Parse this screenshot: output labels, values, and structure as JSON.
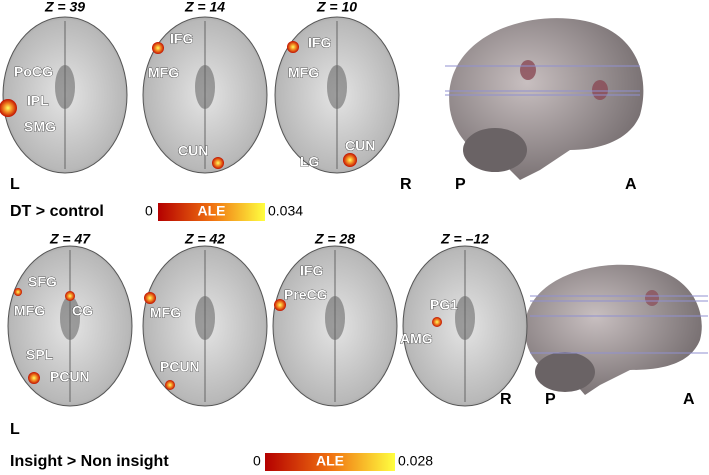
{
  "panels": [
    {
      "slices": [
        {
          "z_label": "Z = 39",
          "labels": [
            "PoCG",
            "IPL",
            "SMG"
          ]
        },
        {
          "z_label": "Z = 14",
          "labels": [
            "IFG",
            "MFG",
            "CUN"
          ]
        },
        {
          "z_label": "Z = 10",
          "labels": [
            "IFG",
            "MFG",
            "CUN",
            "LG"
          ]
        }
      ],
      "left": "L",
      "right": "R",
      "posterior": "P",
      "anterior": "A",
      "contrast": "DT > control",
      "colorbar": {
        "min": 0,
        "label": "ALE",
        "max": 0.034
      }
    },
    {
      "slices": [
        {
          "z_label": "Z = 47",
          "labels": [
            "SFG",
            "MFG",
            "CG",
            "SPL",
            "PCUN"
          ]
        },
        {
          "z_label": "Z = 42",
          "labels": [
            "MFG",
            "PCUN"
          ]
        },
        {
          "z_label": "Z = 28",
          "labels": [
            "IFG",
            "PreCG"
          ]
        },
        {
          "z_label": "Z = –12",
          "labels": [
            "PG1",
            "AMG"
          ]
        }
      ],
      "left": "L",
      "right": "R",
      "posterior": "P",
      "anterior": "A",
      "contrast": "Insight > Non insight",
      "colorbar": {
        "min": 0,
        "label": "ALE",
        "max": 0.028
      }
    }
  ]
}
